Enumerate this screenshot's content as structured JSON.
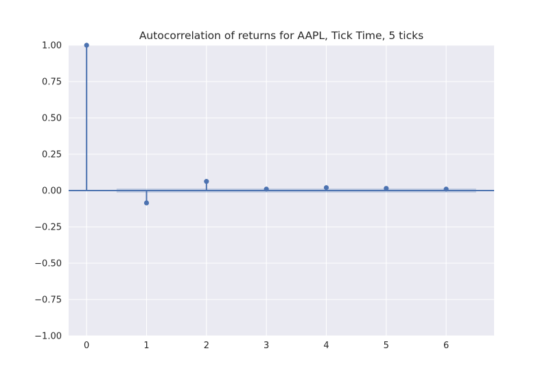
{
  "chart_data": {
    "type": "stem",
    "title": "Autocorrelation of returns for AAPL, Tick Time, 5 ticks",
    "xlabel": "",
    "ylabel": "",
    "lags": [
      0,
      1,
      2,
      3,
      4,
      5,
      6
    ],
    "values": [
      1.0,
      -0.085,
      0.063,
      0.01,
      0.02,
      0.015,
      0.01
    ],
    "confidence_band": {
      "lower": -0.007,
      "upper": 0.007,
      "x_range": [
        0.5,
        6.5
      ]
    },
    "xlim": [
      -0.3,
      6.8
    ],
    "ylim": [
      -1.0,
      1.0
    ],
    "xticks": [
      0,
      1,
      2,
      3,
      4,
      5,
      6
    ],
    "yticks": [
      -1.0,
      -0.75,
      -0.5,
      -0.25,
      0.0,
      0.25,
      0.5,
      0.75,
      1.0
    ],
    "xtick_labels": [
      "0",
      "1",
      "2",
      "3",
      "4",
      "5",
      "6"
    ],
    "ytick_labels": [
      "−1.00",
      "−0.75",
      "−0.50",
      "−0.25",
      "0.00",
      "0.25",
      "0.50",
      "0.75",
      "1.00"
    ],
    "grid": true,
    "colors": {
      "series": "#4c72b0",
      "background": "#eaeaf2",
      "grid": "#ffffff",
      "band": "#4c72b0"
    }
  }
}
